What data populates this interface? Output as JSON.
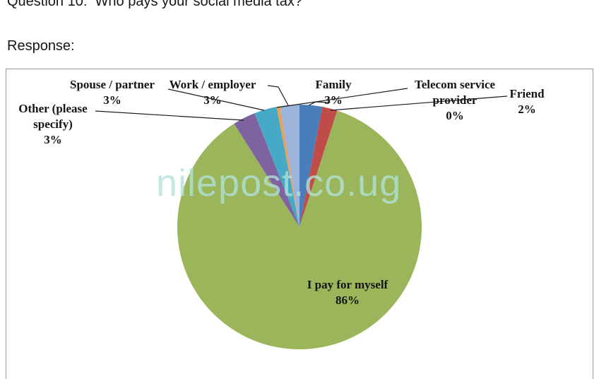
{
  "document": {
    "title": "Question 10:  Who pays your social media tax?",
    "response_label": "Response:"
  },
  "watermark": {
    "text": "nilepost.co.ug",
    "color": "#b1e2d8"
  },
  "chart_data": {
    "type": "pie",
    "title": "",
    "legend_position": "none",
    "label_style": "outside callouts with leader lines; largest slice labeled inside",
    "direction": "clockwise",
    "start_angle_deg": 0,
    "unit": "%",
    "categories": [
      "Family",
      "Friend",
      "I pay for myself",
      "Other (please specify)",
      "Spouse / partner",
      "Telecom service provider",
      "Work / employer"
    ],
    "values": [
      3,
      2,
      86,
      3,
      3,
      0,
      3
    ],
    "slices": [
      {
        "label": "Family",
        "pct": 3,
        "color": "#4a7ebb",
        "sweep_deg": 10.8
      },
      {
        "label": "Friend",
        "pct": 2,
        "color": "#bf4c48",
        "sweep_deg": 7.2
      },
      {
        "label": "I pay for myself",
        "pct": 86,
        "color": "#9bb55a",
        "sweep_deg": 309.6
      },
      {
        "label": "Other (please specify)",
        "pct": 3,
        "color": "#7f63a1",
        "sweep_deg": 10.8
      },
      {
        "label": "Spouse / partner",
        "pct": 3,
        "color": "#46aac6",
        "sweep_deg": 10.8
      },
      {
        "label": "Telecom service provider",
        "pct": 0,
        "color": "#efa054",
        "sweep_deg": 1.6
      },
      {
        "label": "Work / employer",
        "pct": 3,
        "color": "#9cb4d9",
        "sweep_deg": 9.2
      }
    ]
  },
  "callouts": {
    "other": {
      "l1": "Other (please",
      "l2": "specify)",
      "pct": "3%"
    },
    "spouse": {
      "l1": "Spouse / partner",
      "pct": "3%"
    },
    "work": {
      "l1": "Work / employer",
      "pct": "3%"
    },
    "family": {
      "l1": "Family",
      "pct": "3%"
    },
    "telecom": {
      "l1": "Telecom service",
      "l2": "provider",
      "pct": "0%"
    },
    "friend": {
      "l1": "Friend",
      "pct": "2%"
    },
    "ipay": {
      "l1": "I pay for myself",
      "pct": "86%"
    }
  }
}
